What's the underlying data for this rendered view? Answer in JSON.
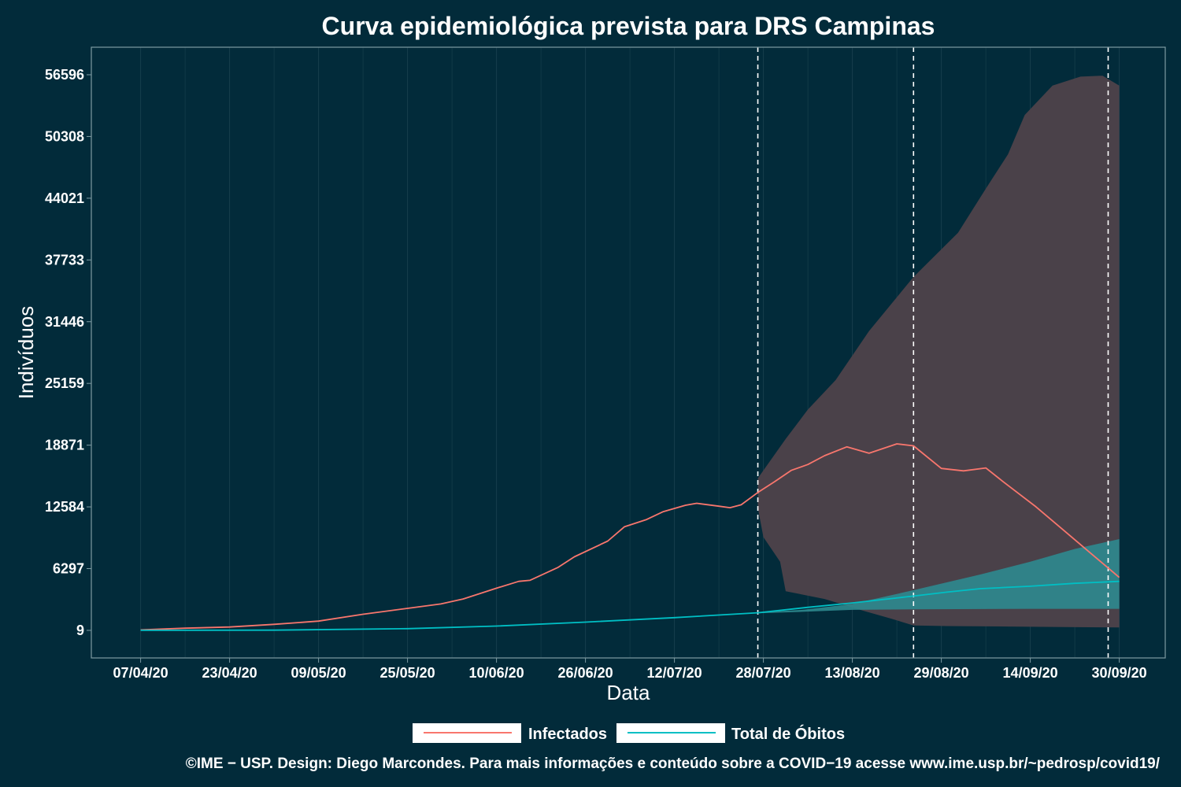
{
  "chart_data": {
    "type": "line",
    "title": "Curva epidemiológica prevista para DRS Campinas",
    "xlabel": "Data",
    "ylabel": "Indivíduos",
    "x_start": "07/04/20",
    "x_end": "30/09/20",
    "x_ticks": [
      "07/04/20",
      "23/04/20",
      "09/05/20",
      "25/05/20",
      "10/06/20",
      "26/06/20",
      "12/07/20",
      "28/07/20",
      "13/08/20",
      "29/08/20",
      "14/09/20",
      "30/09/20"
    ],
    "y_ticks": [
      "9",
      "6297",
      "12584",
      "18871",
      "25159",
      "31446",
      "37733",
      "44021",
      "50308",
      "56596"
    ],
    "ylim": [
      -2800,
      59400
    ],
    "vlines": [
      "27/07/20",
      "24/08/20",
      "28/09/20"
    ],
    "legend": {
      "position": "bottom",
      "entries": [
        "Infectados",
        "Total de Óbitos"
      ]
    },
    "colors": {
      "infectados": "#f8766d",
      "obitos": "#00bfc4",
      "infectados_band": "#4a4149",
      "obitos_band": "#2e8a8f",
      "background": "#022b3a",
      "grid": "#173f4c"
    },
    "series": [
      {
        "name": "Infectados",
        "points": [
          [
            "07/04/20",
            50
          ],
          [
            "15/04/20",
            230
          ],
          [
            "23/04/20",
            350
          ],
          [
            "01/05/20",
            620
          ],
          [
            "09/05/20",
            950
          ],
          [
            "17/05/20",
            1650
          ],
          [
            "25/05/20",
            2250
          ],
          [
            "31/05/20",
            2700
          ],
          [
            "04/06/20",
            3200
          ],
          [
            "10/06/20",
            4300
          ],
          [
            "14/06/20",
            5000
          ],
          [
            "16/06/20",
            5100
          ],
          [
            "21/06/20",
            6400
          ],
          [
            "24/06/20",
            7500
          ],
          [
            "30/06/20",
            9100
          ],
          [
            "03/07/20",
            10550
          ],
          [
            "07/07/20",
            11300
          ],
          [
            "10/07/20",
            12100
          ],
          [
            "14/07/20",
            12750
          ],
          [
            "16/07/20",
            12950
          ],
          [
            "20/07/20",
            12650
          ],
          [
            "22/07/20",
            12500
          ],
          [
            "24/07/20",
            12800
          ],
          [
            "27/07/20",
            14050
          ],
          [
            "30/07/20",
            15150
          ],
          [
            "02/08/20",
            16300
          ],
          [
            "05/08/20",
            16900
          ],
          [
            "08/08/20",
            17800
          ],
          [
            "12/08/20",
            18700
          ],
          [
            "16/08/20",
            18050
          ],
          [
            "21/08/20",
            19000
          ],
          [
            "24/08/20",
            18800
          ],
          [
            "29/08/20",
            16500
          ],
          [
            "02/09/20",
            16250
          ],
          [
            "06/09/20",
            16550
          ],
          [
            "09/09/20",
            15200
          ],
          [
            "15/09/20",
            12600
          ],
          [
            "20/09/20",
            10200
          ],
          [
            "25/09/20",
            7800
          ],
          [
            "30/09/20",
            5400
          ]
        ]
      },
      {
        "name": "Total de Óbitos",
        "points": [
          [
            "07/04/20",
            10
          ],
          [
            "01/05/20",
            30
          ],
          [
            "25/05/20",
            180
          ],
          [
            "10/06/20",
            450
          ],
          [
            "26/06/20",
            850
          ],
          [
            "12/07/20",
            1300
          ],
          [
            "27/07/20",
            1800
          ],
          [
            "05/08/20",
            2350
          ],
          [
            "13/08/20",
            2800
          ],
          [
            "24/08/20",
            3500
          ],
          [
            "30/08/20",
            3900
          ],
          [
            "05/09/20",
            4250
          ],
          [
            "14/09/20",
            4500
          ],
          [
            "22/09/20",
            4800
          ],
          [
            "30/09/20",
            5000
          ]
        ]
      }
    ],
    "bands": [
      {
        "series": "Infectados",
        "upper": [
          [
            "27/07/20",
            15500
          ],
          [
            "01/08/20",
            19500
          ],
          [
            "05/08/20",
            22500
          ],
          [
            "10/08/20",
            25500
          ],
          [
            "16/08/20",
            30500
          ],
          [
            "24/08/20",
            36000
          ],
          [
            "01/09/20",
            40500
          ],
          [
            "06/09/20",
            45000
          ],
          [
            "10/09/20",
            48500
          ],
          [
            "13/09/20",
            52500
          ],
          [
            "18/09/20",
            55500
          ],
          [
            "23/09/20",
            56400
          ],
          [
            "27/09/20",
            56500
          ],
          [
            "30/09/20",
            55500
          ]
        ],
        "lower": [
          [
            "27/07/20",
            12500
          ],
          [
            "28/07/20",
            9500
          ],
          [
            "31/07/20",
            7000
          ],
          [
            "01/08/20",
            4000
          ],
          [
            "08/08/20",
            3200
          ],
          [
            "15/08/20",
            2000
          ],
          [
            "20/08/20",
            1200
          ],
          [
            "24/08/20",
            500
          ],
          [
            "30/08/20",
            450
          ],
          [
            "10/09/20",
            400
          ],
          [
            "20/09/20",
            350
          ],
          [
            "30/09/20",
            300
          ]
        ]
      },
      {
        "series": "Total de Óbitos",
        "upper": [
          [
            "27/07/20",
            1850
          ],
          [
            "04/08/20",
            2100
          ],
          [
            "13/08/20",
            2700
          ],
          [
            "24/08/20",
            4100
          ],
          [
            "05/09/20",
            5700
          ],
          [
            "14/09/20",
            7000
          ],
          [
            "22/09/20",
            8300
          ],
          [
            "30/09/20",
            9300
          ]
        ],
        "lower": [
          [
            "27/07/20",
            1750
          ],
          [
            "04/08/20",
            1900
          ],
          [
            "13/08/20",
            2100
          ],
          [
            "24/08/20",
            2150
          ],
          [
            "14/09/20",
            2200
          ],
          [
            "30/09/20",
            2200
          ]
        ]
      }
    ]
  },
  "footer": "©IME − USP. Design: Diego Marcondes. Para mais informações e conteúdo sobre a COVID−19 acesse www.ime.usp.br/~pedrosp/covid19/"
}
